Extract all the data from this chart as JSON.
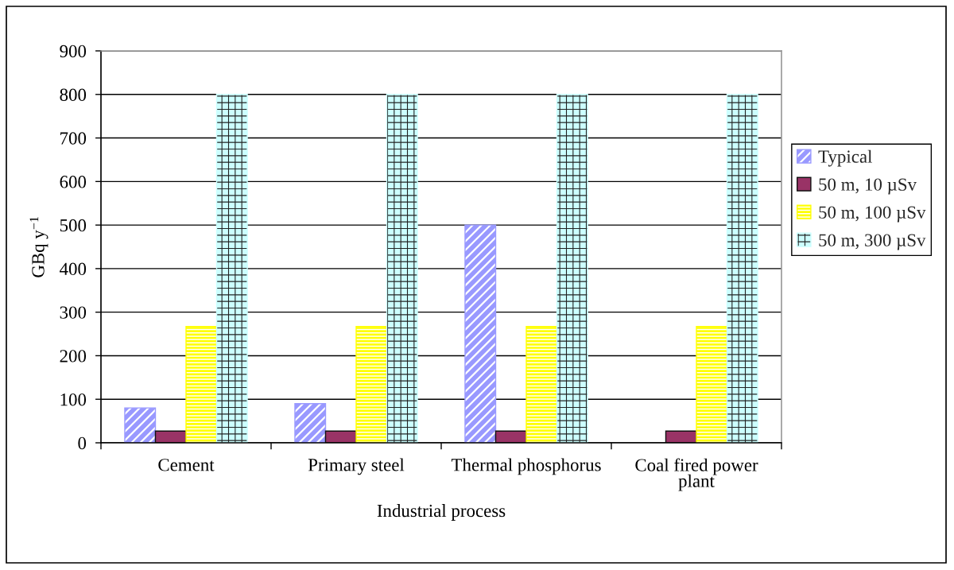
{
  "chart_data": {
    "type": "bar",
    "xlabel": "Industrial process",
    "ylabel": "GBq y$^{−1}$",
    "categories": [
      "Cement",
      "Primary steel",
      "Thermal phosphorus",
      "Coal fired power plant"
    ],
    "series": [
      {
        "name": "Typical",
        "color": "#9999ff",
        "values": [
          80,
          90,
          500,
          null
        ]
      },
      {
        "name": "50 m, 10 µSv",
        "color": "#993366",
        "values": [
          27,
          27,
          27,
          27
        ]
      },
      {
        "name": "50 m, 100 µSv",
        "color": "#ffff00",
        "values": [
          267,
          267,
          267,
          267
        ]
      },
      {
        "name": "50 m, 300 µSv",
        "color": "#ccffff",
        "values": [
          800,
          800,
          800,
          800
        ]
      }
    ],
    "ylim": [
      0,
      900
    ],
    "yticks": [
      0,
      100,
      200,
      300,
      400,
      500,
      600,
      700,
      800,
      900
    ],
    "grid": "y",
    "legend": "right"
  }
}
